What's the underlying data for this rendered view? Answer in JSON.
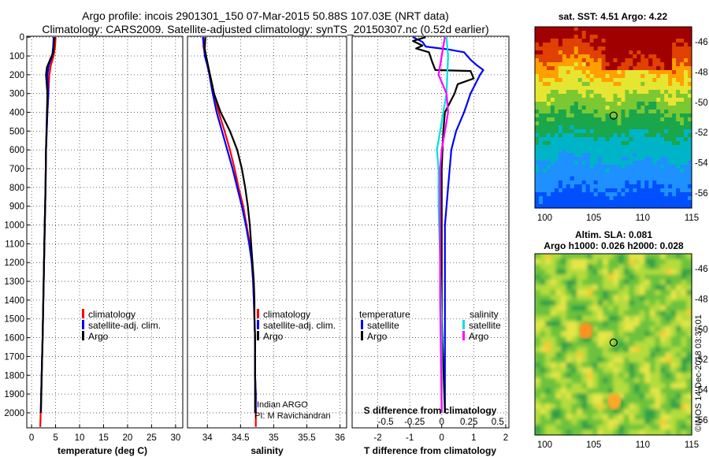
{
  "title": {
    "line1": "Argo profile: incois 2901301_150 07-Mar-2015 50.88S 107.03E (NRT data)",
    "line2": "Climatology: CARS2009. Satellite-adjusted climatology: synTS_20150307.nc (0.52d earlier)"
  },
  "colors": {
    "climatology": "#ff0000",
    "satellite": "#0000ff",
    "argo": "#000000",
    "cyan": "#00e0e0",
    "magenta": "#ff00ff"
  },
  "chart_data": [
    {
      "type": "line",
      "name": "temperature",
      "xlabel": "temperature (deg C)",
      "xlim": [
        -1,
        31.5
      ],
      "ylim": [
        2080,
        -5
      ],
      "xticks": [
        0,
        5,
        10,
        15,
        20,
        25,
        30
      ],
      "yticks": [
        0,
        100,
        200,
        300,
        400,
        500,
        600,
        700,
        800,
        900,
        1000,
        1100,
        1200,
        1300,
        1400,
        1500,
        1600,
        1700,
        1800,
        1900,
        2000
      ],
      "legend": [
        "climatology",
        "satellite-adj. clim.",
        "Argo"
      ],
      "series": [
        {
          "name": "climatology",
          "color": "#ff0000",
          "points": [
            [
              5.0,
              0
            ],
            [
              4.9,
              50
            ],
            [
              4.6,
              100
            ],
            [
              4.0,
              150
            ],
            [
              3.7,
              200
            ],
            [
              3.5,
              300
            ],
            [
              3.3,
              400
            ],
            [
              3.15,
              500
            ],
            [
              3.0,
              600
            ],
            [
              2.9,
              800
            ],
            [
              2.75,
              1000
            ],
            [
              2.6,
              1200
            ],
            [
              2.45,
              1400
            ],
            [
              2.3,
              1600
            ],
            [
              2.1,
              1800
            ],
            [
              1.9,
              2000
            ],
            [
              1.8,
              2075
            ]
          ]
        },
        {
          "name": "satellite-adj. clim.",
          "color": "#0000ff",
          "points": [
            [
              4.6,
              0
            ],
            [
              4.5,
              50
            ],
            [
              4.3,
              100
            ],
            [
              3.6,
              150
            ],
            [
              3.3,
              200
            ],
            [
              3.5,
              300
            ],
            [
              3.3,
              400
            ],
            [
              3.15,
              500
            ],
            [
              3.0,
              600
            ],
            [
              2.9,
              800
            ],
            [
              2.75,
              1000
            ],
            [
              2.6,
              1200
            ],
            [
              2.45,
              1400
            ],
            [
              2.3,
              1600
            ],
            [
              2.1,
              1800
            ],
            [
              1.9,
              2000
            ]
          ]
        },
        {
          "name": "Argo",
          "color": "#000000",
          "points": [
            [
              4.8,
              0
            ],
            [
              4.7,
              30
            ],
            [
              4.5,
              80
            ],
            [
              3.2,
              160
            ],
            [
              3.0,
              200
            ],
            [
              3.3,
              300
            ],
            [
              3.2,
              400
            ],
            [
              3.1,
              500
            ],
            [
              3.0,
              600
            ],
            [
              2.9,
              800
            ],
            [
              2.75,
              1000
            ],
            [
              2.6,
              1200
            ],
            [
              2.45,
              1400
            ],
            [
              2.3,
              1600
            ],
            [
              2.1,
              1800
            ],
            [
              1.95,
              2000
            ]
          ]
        }
      ]
    },
    {
      "type": "line",
      "name": "salinity",
      "xlabel": "salinity",
      "xlim": [
        33.7,
        36.1
      ],
      "ylim": [
        2080,
        -5
      ],
      "xticks": [
        34,
        34.5,
        35,
        35.5,
        36
      ],
      "legend": [
        "climatology",
        "satellite-adj. clim.",
        "Argo"
      ],
      "annotation": [
        "Indian ARGO",
        "PI: M Ravichandran"
      ],
      "series": [
        {
          "name": "climatology",
          "color": "#ff0000",
          "points": [
            [
              33.94,
              0
            ],
            [
              33.94,
              50
            ],
            [
              33.97,
              100
            ],
            [
              34.0,
              150
            ],
            [
              34.04,
              200
            ],
            [
              34.1,
              300
            ],
            [
              34.17,
              400
            ],
            [
              34.26,
              500
            ],
            [
              34.34,
              600
            ],
            [
              34.41,
              700
            ],
            [
              34.47,
              800
            ],
            [
              34.54,
              900
            ],
            [
              34.59,
              1000
            ],
            [
              34.64,
              1100
            ],
            [
              34.67,
              1200
            ],
            [
              34.69,
              1300
            ],
            [
              34.7,
              1400
            ],
            [
              34.71,
              1500
            ],
            [
              34.72,
              1600
            ],
            [
              34.72,
              1700
            ],
            [
              34.72,
              1800
            ],
            [
              34.73,
              1900
            ],
            [
              34.73,
              2000
            ],
            [
              34.73,
              2075
            ]
          ]
        },
        {
          "name": "satellite-adj. clim.",
          "color": "#0000ff",
          "points": [
            [
              33.93,
              0
            ],
            [
              33.95,
              50
            ],
            [
              33.96,
              100
            ],
            [
              34.0,
              150
            ],
            [
              34.03,
              200
            ],
            [
              34.08,
              300
            ],
            [
              34.14,
              400
            ],
            [
              34.22,
              500
            ],
            [
              34.3,
              600
            ],
            [
              34.38,
              700
            ],
            [
              34.45,
              800
            ],
            [
              34.52,
              900
            ],
            [
              34.58,
              1000
            ],
            [
              34.63,
              1100
            ],
            [
              34.67,
              1200
            ],
            [
              34.69,
              1300
            ],
            [
              34.7,
              1400
            ],
            [
              34.71,
              1500
            ],
            [
              34.72,
              1600
            ],
            [
              34.72,
              1700
            ],
            [
              34.72,
              1800
            ],
            [
              34.73,
              1900
            ],
            [
              34.73,
              2000
            ]
          ]
        },
        {
          "name": "Argo",
          "color": "#000000",
          "points": [
            [
              33.97,
              0
            ],
            [
              33.96,
              60
            ],
            [
              33.98,
              100
            ],
            [
              34.04,
              200
            ],
            [
              34.1,
              300
            ],
            [
              34.2,
              400
            ],
            [
              34.34,
              500
            ],
            [
              34.45,
              600
            ],
            [
              34.52,
              700
            ],
            [
              34.57,
              800
            ],
            [
              34.61,
              900
            ],
            [
              34.64,
              1000
            ],
            [
              34.66,
              1100
            ],
            [
              34.68,
              1200
            ],
            [
              34.7,
              1300
            ],
            [
              34.71,
              1400
            ],
            [
              34.71,
              1500
            ],
            [
              34.72,
              1600
            ],
            [
              34.72,
              1700
            ],
            [
              34.72,
              1800
            ],
            [
              34.72,
              1900
            ],
            [
              34.72,
              2000
            ]
          ]
        }
      ]
    },
    {
      "type": "line",
      "name": "difference",
      "xlabel": "T difference from climatology",
      "xlim": [
        -2.8,
        2.1
      ],
      "ylim": [
        2080,
        -5
      ],
      "xticks": [
        -2,
        -1,
        0,
        1,
        2
      ],
      "top_axis": {
        "label": "S difference from climatology",
        "ticks": [
          "-0.5",
          "-0.25",
          "0",
          "0.25",
          "0.5"
        ],
        "scale_to_T": [
          -1.75,
          -0.85,
          0,
          0.85,
          1.75
        ]
      },
      "legend_groups": {
        "temperature": [
          "satellite",
          "Argo"
        ],
        "salinity": [
          "satellite",
          "Argo"
        ]
      },
      "series": [
        {
          "name": "temperature satellite",
          "color": "#0000ff",
          "points": [
            [
              -0.9,
              0
            ],
            [
              -0.6,
              25
            ],
            [
              -0.5,
              50
            ],
            [
              0.2,
              65
            ],
            [
              0.7,
              80
            ],
            [
              0.9,
              120
            ],
            [
              1.1,
              150
            ],
            [
              1.3,
              175
            ],
            [
              1.2,
              200
            ],
            [
              0.9,
              300
            ],
            [
              0.7,
              400
            ],
            [
              0.45,
              500
            ],
            [
              0.3,
              600
            ],
            [
              0.2,
              800
            ],
            [
              0.1,
              1000
            ],
            [
              0.1,
              1400
            ],
            [
              0.1,
              2000
            ]
          ]
        },
        {
          "name": "temperature Argo",
          "color": "#000000",
          "points": [
            [
              -0.5,
              0
            ],
            [
              -0.9,
              20
            ],
            [
              -0.6,
              45
            ],
            [
              -0.8,
              60
            ],
            [
              -0.4,
              80
            ],
            [
              -0.3,
              130
            ],
            [
              -0.2,
              175
            ],
            [
              0.9,
              180
            ],
            [
              1.0,
              220
            ],
            [
              0.5,
              250
            ],
            [
              0.4,
              300
            ],
            [
              0.1,
              400
            ],
            [
              0.05,
              500
            ],
            [
              0,
              700
            ],
            [
              0,
              1000
            ],
            [
              0,
              1500
            ],
            [
              0.1,
              2000
            ]
          ]
        },
        {
          "name": "salinity satellite",
          "color": "#00e0e0",
          "points": [
            [
              0.15,
              0
            ],
            [
              0.2,
              100
            ],
            [
              0.15,
              300
            ],
            [
              0.05,
              400
            ],
            [
              -0.05,
              500
            ],
            [
              -0.15,
              600
            ],
            [
              -0.1,
              700
            ],
            [
              -0.1,
              800
            ],
            [
              -0.1,
              900
            ],
            [
              -0.05,
              1200
            ],
            [
              0,
              1600
            ],
            [
              0,
              2000
            ]
          ]
        },
        {
          "name": "salinity Argo",
          "color": "#ff00ff",
          "points": [
            [
              0.1,
              0
            ],
            [
              0.05,
              50
            ],
            [
              0.0,
              100
            ],
            [
              -0.1,
              200
            ],
            [
              0.15,
              300
            ],
            [
              0.2,
              400
            ],
            [
              0.1,
              500
            ],
            [
              0.0,
              600
            ],
            [
              -0.05,
              700
            ],
            [
              -0.05,
              1000
            ],
            [
              -0.05,
              1400
            ],
            [
              0,
              2000
            ]
          ]
        }
      ]
    },
    {
      "type": "heatmap",
      "name": "sst-map",
      "title": "sat. SST: 4.51 Argo: 4.22",
      "xlim": [
        99,
        115
      ],
      "ylim": [
        -57,
        -45
      ],
      "xticks": [
        100,
        105,
        110,
        115
      ],
      "yticks": [
        -46,
        -48,
        -50,
        -52,
        -54,
        -56
      ],
      "marker": {
        "lon": 107.03,
        "lat": -50.88
      }
    },
    {
      "type": "heatmap",
      "name": "sla-map",
      "title": "Altim. SLA: 0.081",
      "subtitle": "Argo h1000: 0.026 h2000: 0.028",
      "xlim": [
        99,
        115
      ],
      "ylim": [
        -57,
        -45
      ],
      "xticks": [
        100,
        105,
        110,
        115
      ],
      "yticks": [
        -46,
        -48,
        -50,
        -52,
        -54,
        -56
      ],
      "marker": {
        "lon": 107.03,
        "lat": -50.88
      },
      "credit": "©IMOS 14-Dec-2018 03:37:01"
    }
  ]
}
